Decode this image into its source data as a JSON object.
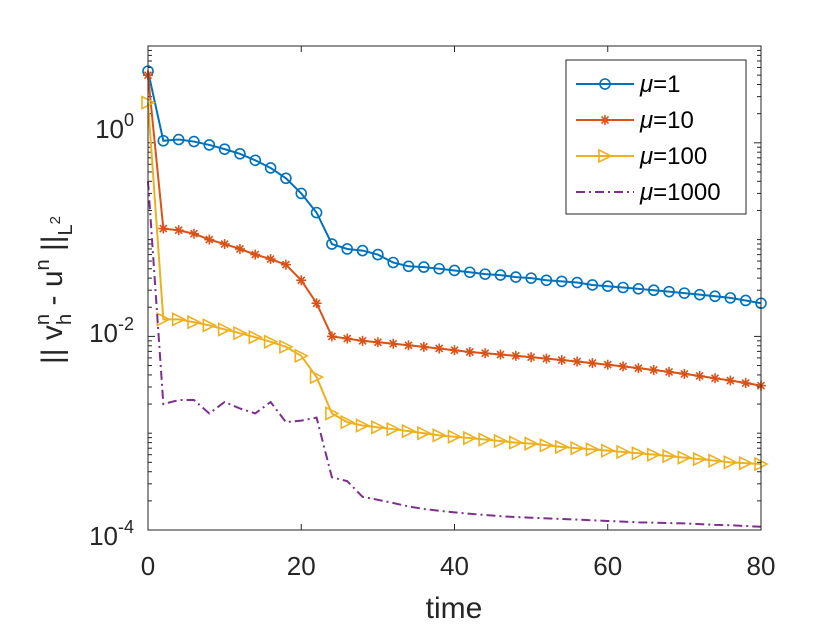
{
  "chart_data": {
    "type": "line",
    "yscale": "log",
    "xlabel": "time",
    "ylabel": {
      "base": "|| v",
      "sup1": "n",
      "sub1": "h",
      "mid": " - u",
      "sup2": "n",
      "end": " ||",
      "sub2": "L",
      "sub2sup": "2"
    },
    "xlim": [
      0,
      80
    ],
    "ylim": [
      0.0001,
      10
    ],
    "xticks": [
      0,
      20,
      40,
      60,
      80
    ],
    "xtick_labels": [
      "0",
      "20",
      "40",
      "60",
      "80"
    ],
    "yticks": [
      0.0001,
      0.01,
      1
    ],
    "ytick_labels": [
      {
        "base": "10",
        "exp": "-4"
      },
      {
        "base": "10",
        "exp": "-2"
      },
      {
        "base": "10",
        "exp": "0"
      }
    ],
    "legend_position": "top-right",
    "x": [
      0,
      2,
      4,
      6,
      8,
      10,
      12,
      14,
      16,
      18,
      20,
      22,
      24,
      26,
      28,
      30,
      32,
      34,
      36,
      38,
      40,
      42,
      44,
      46,
      48,
      50,
      52,
      54,
      56,
      58,
      60,
      62,
      64,
      66,
      68,
      70,
      72,
      74,
      76,
      78,
      80
    ],
    "series": [
      {
        "name": "μ=1",
        "legend_mu": "μ",
        "legend_value": "=1",
        "color": "#0072BD",
        "marker": "circle",
        "linestyle": "solid",
        "values": [
          5.5,
          1.05,
          1.08,
          1.03,
          0.95,
          0.86,
          0.77,
          0.66,
          0.55,
          0.43,
          0.3,
          0.19,
          0.09,
          0.08,
          0.077,
          0.07,
          0.058,
          0.053,
          0.052,
          0.05,
          0.048,
          0.046,
          0.044,
          0.043,
          0.041,
          0.04,
          0.038,
          0.037,
          0.036,
          0.034,
          0.033,
          0.032,
          0.031,
          0.03,
          0.029,
          0.028,
          0.027,
          0.026,
          0.025,
          0.0235,
          0.022
        ]
      },
      {
        "name": "μ=10",
        "legend_mu": "μ",
        "legend_value": "=10",
        "color": "#D95319",
        "marker": "asterisk",
        "linestyle": "solid",
        "values": [
          5.0,
          0.13,
          0.125,
          0.115,
          0.1,
          0.09,
          0.08,
          0.07,
          0.063,
          0.055,
          0.038,
          0.022,
          0.01,
          0.0095,
          0.009,
          0.0087,
          0.0084,
          0.0081,
          0.0078,
          0.0075,
          0.0072,
          0.0069,
          0.0067,
          0.0065,
          0.0063,
          0.0061,
          0.0059,
          0.0057,
          0.0055,
          0.0053,
          0.0051,
          0.0049,
          0.0047,
          0.0045,
          0.0043,
          0.0041,
          0.0039,
          0.0037,
          0.0035,
          0.0033,
          0.0031
        ]
      },
      {
        "name": "μ=100",
        "legend_mu": "μ",
        "legend_value": "=100",
        "color": "#EDB120",
        "marker": "triangle-right",
        "linestyle": "solid",
        "values": [
          2.6,
          0.015,
          0.015,
          0.014,
          0.013,
          0.0118,
          0.0108,
          0.0098,
          0.0088,
          0.0078,
          0.0063,
          0.0038,
          0.0016,
          0.0013,
          0.0012,
          0.00115,
          0.0011,
          0.00105,
          0.001,
          0.00095,
          0.00092,
          0.00089,
          0.00086,
          0.00083,
          0.0008,
          0.00078,
          0.00075,
          0.00072,
          0.0007,
          0.00068,
          0.00066,
          0.00064,
          0.00062,
          0.0006,
          0.00058,
          0.00056,
          0.00054,
          0.00052,
          0.0005,
          0.00049,
          0.00048
        ]
      },
      {
        "name": "μ=1000",
        "legend_mu": "μ",
        "legend_value": "=1000",
        "color": "#7E2F8E",
        "marker": "none",
        "linestyle": "dashdot",
        "values": [
          0.4,
          0.002,
          0.0022,
          0.0022,
          0.0016,
          0.0021,
          0.0018,
          0.0016,
          0.0021,
          0.0013,
          0.00135,
          0.00145,
          0.00035,
          0.00032,
          0.00022,
          0.000205,
          0.00019,
          0.000175,
          0.000165,
          0.000158,
          0.000152,
          0.000147,
          0.000143,
          0.000139,
          0.000136,
          0.000134,
          0.000132,
          0.00013,
          0.000128,
          0.000126,
          0.000124,
          0.000122,
          0.00012,
          0.000119,
          0.000118,
          0.000117,
          0.000115,
          0.000113,
          0.000112,
          0.00011,
          0.000108
        ]
      }
    ]
  }
}
